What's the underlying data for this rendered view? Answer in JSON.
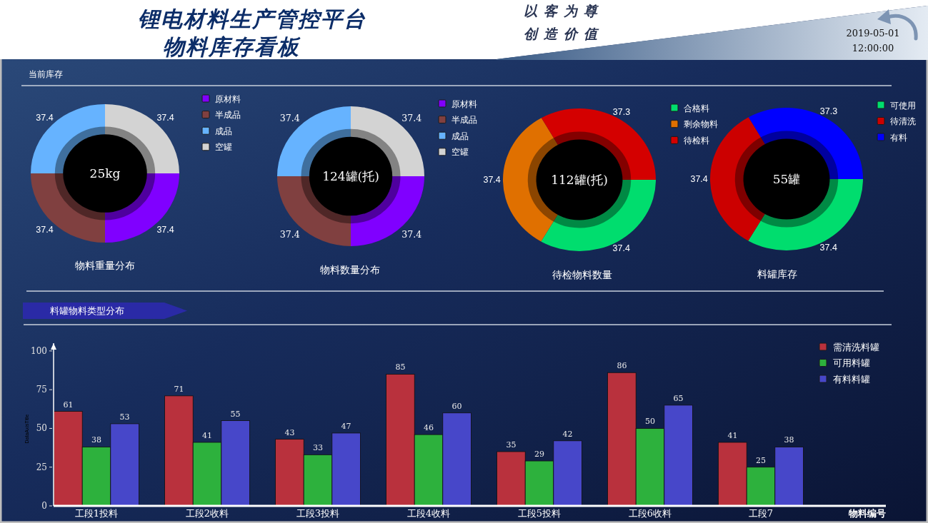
{
  "chart_data": [
    {
      "type": "other",
      "title": "锂电材料生产管控平台",
      "subtitle": "物料库存看板",
      "annotations": [
        "以客为尊",
        "创造价值",
        "2019-05-01",
        "12:00:00",
        "当前库存"
      ]
    },
    {
      "type": "donut",
      "title": "物料重量分布",
      "categories": [
        "原材料",
        "半成品",
        "成品",
        "空罐"
      ],
      "values": [
        37.4,
        37.4,
        37.4,
        37.4
      ],
      "colors": [
        "#8000ff",
        "#804040",
        "#66b3ff",
        "#d3d3d3"
      ],
      "data_labels": true,
      "legend": "top right",
      "annotations": [
        "25kg"
      ]
    },
    {
      "type": "donut",
      "title": "物料数量分布",
      "categories": [
        "原材料",
        "半成品",
        "成品",
        "空罐"
      ],
      "values": [
        37.4,
        37.4,
        37.4,
        37.4
      ],
      "colors": [
        "#8000ff",
        "#804040",
        "#66b3ff",
        "#d3d3d3"
      ],
      "data_labels": true,
      "legend": "top right",
      "annotations": [
        "124罐(托)"
      ]
    },
    {
      "type": "donut",
      "title": "待检物料数量",
      "categories": [
        "合格料",
        "剩余物料",
        "待检料"
      ],
      "values": [
        37.4,
        37.4,
        37.3
      ],
      "colors": [
        "#00dd6e",
        "#e07000",
        "#d40000"
      ],
      "data_labels": true,
      "legend": "top right",
      "annotations": [
        "112罐(托)"
      ]
    },
    {
      "type": "donut",
      "title": "料罐库存",
      "categories": [
        "可使用",
        "待清洗",
        "有料"
      ],
      "values": [
        37.4,
        37.4,
        37.3
      ],
      "colors": [
        "#00dd6e",
        "#cc0000",
        "#0000ff"
      ],
      "data_labels": true,
      "legend": "top right",
      "annotations": [
        "55罐"
      ]
    },
    {
      "type": "bar",
      "title": "料罐物料类型分布",
      "xlabel": "物料编号",
      "ylabel": "DataAxisTitle",
      "categories": [
        "工段1投料",
        "工段2收料",
        "工段3投料",
        "工段4收料",
        "工段5投料",
        "工段6收料",
        "工段7"
      ],
      "series": [
        {
          "name": "需清洗料罐",
          "color": "#b9313d",
          "values": [
            61,
            71,
            43,
            85,
            35,
            86,
            41
          ]
        },
        {
          "name": "可用料罐",
          "color": "#2db13d",
          "values": [
            38,
            41,
            33,
            46,
            29,
            50,
            25
          ]
        },
        {
          "name": "有料料罐",
          "color": "#4747c9",
          "values": [
            53,
            55,
            47,
            60,
            42,
            65,
            38
          ]
        }
      ],
      "ylim": [
        0,
        105
      ],
      "yticks": [
        0,
        25,
        50,
        75,
        100
      ],
      "data_labels": true,
      "legend": "top right"
    }
  ]
}
